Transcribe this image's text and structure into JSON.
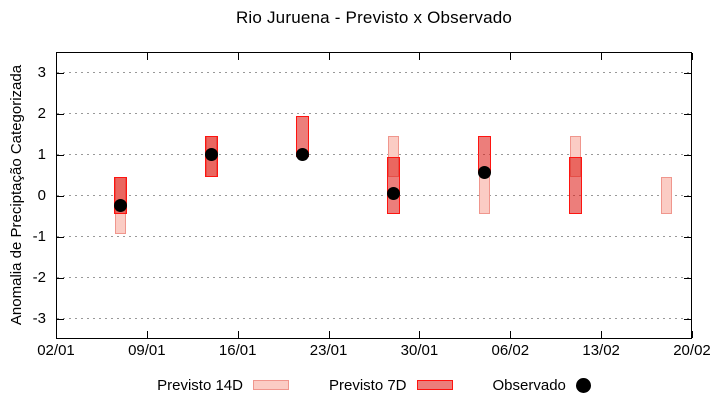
{
  "legend": {
    "items": [
      {
        "label": "Previsto 14D"
      },
      {
        "label": "Previsto 7D"
      },
      {
        "label": "Observado"
      }
    ]
  },
  "colors": {
    "p14_fill": "#fbccc4",
    "p14_border": "#f0968d",
    "p7_fill": "rgba(220,20,15,0.55)",
    "p7_border": "#fe1410",
    "observed": "#000000",
    "grid": "#999999",
    "frame": "#000000"
  },
  "chart_data": {
    "type": "bar",
    "title": "Rio Juruena - Previsto x Observado",
    "ylabel": "Anomalia de Preciptação Categorizada",
    "ylim": [
      -3.5,
      3.5
    ],
    "y_ticks": [
      3,
      2,
      1,
      0,
      -1,
      -2,
      -3
    ],
    "x_ticks": [
      "02/01",
      "09/01",
      "16/01",
      "23/01",
      "30/01",
      "06/02",
      "13/02",
      "20/02"
    ],
    "x_range_days": 49,
    "grid": "horizontal-dotted",
    "legend_position": "below-center",
    "series": [
      {
        "name": "Previsto 14D",
        "type": "range-bar",
        "ranges": [
          {
            "date": "07/01",
            "low": -0.95,
            "high": 0.45
          },
          {
            "date": "14/01",
            "low": 0.45,
            "high": 1.45
          },
          {
            "date": "28/01",
            "low": 0.45,
            "high": 1.45
          },
          {
            "date": "04/02",
            "low": -0.45,
            "high": 0.55
          },
          {
            "date": "11/02",
            "low": 0.45,
            "high": 1.45
          },
          {
            "date": "18/02",
            "low": -0.45,
            "high": 0.45
          }
        ]
      },
      {
        "name": "Previsto 7D",
        "type": "range-bar",
        "ranges": [
          {
            "date": "07/01",
            "low": -0.45,
            "high": 0.45
          },
          {
            "date": "14/01",
            "low": 0.45,
            "high": 1.45
          },
          {
            "date": "21/01",
            "low": 0.95,
            "high": 1.95
          },
          {
            "date": "28/01",
            "low": -0.45,
            "high": 0.95
          },
          {
            "date": "04/02",
            "low": 0.55,
            "high": 1.45
          },
          {
            "date": "11/02",
            "low": -0.45,
            "high": 0.95
          }
        ]
      },
      {
        "name": "Observado",
        "type": "scatter",
        "points": [
          {
            "date": "07/01",
            "value": -0.25
          },
          {
            "date": "14/01",
            "value": 1.0
          },
          {
            "date": "21/01",
            "value": 1.0
          },
          {
            "date": "28/01",
            "value": 0.05
          },
          {
            "date": "04/02",
            "value": 0.55
          }
        ]
      }
    ]
  }
}
